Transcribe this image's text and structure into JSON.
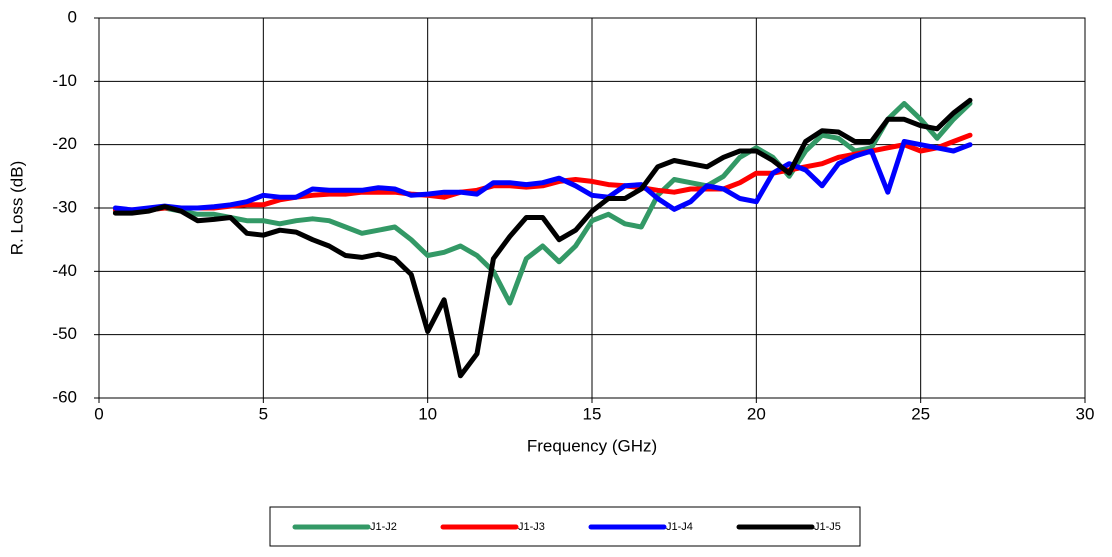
{
  "chart_data": {
    "type": "line",
    "x_label": "Frequency (GHz)",
    "y_label": "R. Loss (dB)",
    "x": [
      0.5,
      1,
      1.5,
      2,
      2.5,
      3,
      3.5,
      4,
      4.5,
      5,
      5.5,
      6,
      6.5,
      7,
      7.5,
      8,
      8.5,
      9,
      9.5,
      10,
      10.5,
      11,
      11.5,
      12,
      12.5,
      13,
      13.5,
      14,
      14.5,
      15,
      15.5,
      16,
      16.5,
      17,
      17.5,
      18,
      18.5,
      19,
      19.5,
      20,
      20.5,
      21,
      21.5,
      22,
      22.5,
      23,
      23.5,
      24,
      24.5,
      25,
      25.5,
      26,
      26.5
    ],
    "series": [
      {
        "name": "J1-J2",
        "color": "#339966",
        "values": [
          -30.5,
          -30.5,
          -30.3,
          -30,
          -30.5,
          -31,
          -31,
          -31.5,
          -32,
          -32,
          -32.5,
          -32,
          -31.7,
          -32,
          -33,
          -34,
          -33.5,
          -33,
          -35,
          -37.5,
          -37,
          -36,
          -37.5,
          -40,
          -45,
          -38,
          -36,
          -38.5,
          -36,
          -32,
          -31,
          -32.5,
          -33,
          -28,
          -25.5,
          -26,
          -26.5,
          -25,
          -22,
          -20.5,
          -22,
          -25,
          -21,
          -18.5,
          -19,
          -21,
          -20.5,
          -16,
          -13.5,
          -16,
          -19,
          -16,
          -13.5
        ]
      },
      {
        "name": "J1-J3",
        "color": "#ff0000",
        "values": [
          -30.3,
          -30.3,
          -30.3,
          -30,
          -30,
          -30,
          -30,
          -29.7,
          -29.5,
          -29.5,
          -28.7,
          -28.3,
          -28,
          -27.8,
          -27.8,
          -27.5,
          -27.5,
          -27.5,
          -27.8,
          -28,
          -28.3,
          -27.5,
          -27.2,
          -26.5,
          -26.5,
          -26.7,
          -26.5,
          -25.8,
          -25.5,
          -25.8,
          -26.3,
          -26.5,
          -26.8,
          -27.2,
          -27.5,
          -27,
          -27,
          -27,
          -26,
          -24.5,
          -24.5,
          -24,
          -23.5,
          -23,
          -22,
          -21.5,
          -21,
          -20.5,
          -20,
          -21,
          -20.5,
          -19.5,
          -18.5
        ]
      },
      {
        "name": "J1-J4",
        "color": "#0000ff",
        "values": [
          -30,
          -30.3,
          -30,
          -29.7,
          -30,
          -30,
          -29.8,
          -29.5,
          -29,
          -28,
          -28.3,
          -28.3,
          -27,
          -27.2,
          -27.2,
          -27.2,
          -26.8,
          -27,
          -28,
          -27.8,
          -27.5,
          -27.5,
          -27.8,
          -26,
          -26,
          -26.3,
          -26,
          -25.3,
          -26.5,
          -28,
          -28.3,
          -26.5,
          -26.3,
          -28.5,
          -30.2,
          -29,
          -26.5,
          -27,
          -28.5,
          -29,
          -24.5,
          -23,
          -24,
          -26.5,
          -23,
          -21.8,
          -21,
          -27.5,
          -19.5,
          -20,
          -20.5,
          -21,
          -20
        ]
      },
      {
        "name": "J1-J5",
        "color": "#000000",
        "values": [
          -30.8,
          -30.8,
          -30.5,
          -29.8,
          -30.5,
          -32,
          -31.8,
          -31.5,
          -34,
          -34.3,
          -33.5,
          -33.8,
          -35,
          -36,
          -37.5,
          -37.8,
          -37.3,
          -38,
          -40.5,
          -49.5,
          -44.5,
          -56.5,
          -53,
          -38,
          -34.5,
          -31.5,
          -31.5,
          -35,
          -33.5,
          -30.5,
          -28.5,
          -28.5,
          -27,
          -23.5,
          -22.5,
          -23,
          -23.5,
          -22,
          -21,
          -21,
          -22.5,
          -24.5,
          -19.5,
          -17.8,
          -18,
          -19.5,
          -19.5,
          -16,
          -16,
          -17,
          -17.5,
          -15,
          -13
        ]
      }
    ],
    "xlim": [
      0,
      30
    ],
    "xticks": [
      0,
      5,
      10,
      15,
      20,
      25,
      30
    ],
    "ylim": [
      -60,
      0
    ],
    "yticks": [
      0,
      -10,
      -20,
      -30,
      -40,
      -50,
      -60
    ],
    "grid": true,
    "legend": "bottom"
  }
}
